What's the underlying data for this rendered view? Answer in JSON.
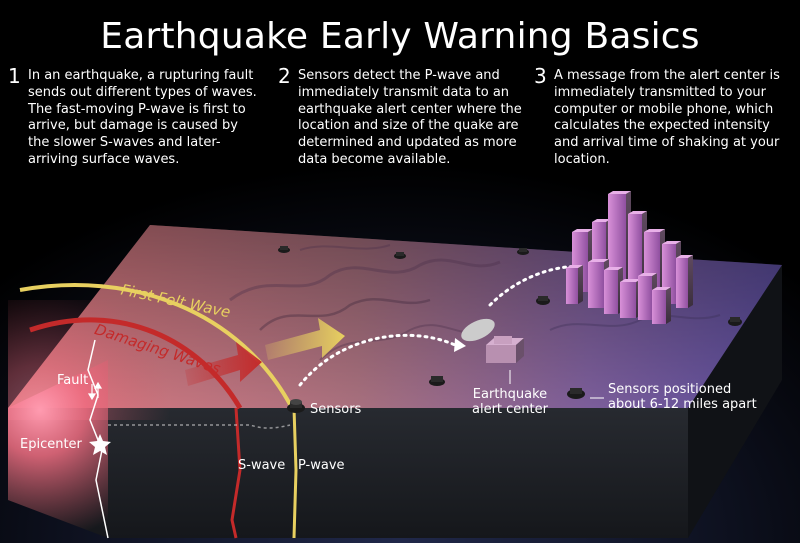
{
  "title": "Earthquake Early Warning Basics",
  "steps": [
    {
      "number": "1",
      "text": "In an earthquake, a rupturing fault sends out different types of waves.  The fast-moving P-wave is first to arrive, but damage is caused by the slower S-waves and later-arriving surface waves."
    },
    {
      "number": "2",
      "text": "Sensors detect the P-wave and immediately transmit data to an earthquake alert center where the location and size of the quake are determined and updated as more data become available."
    },
    {
      "number": "3",
      "text": "A message from the alert center is immediately transmitted to your computer or mobile phone, which calculates the expected intensity and arrival time of shaking at your location."
    }
  ],
  "labels": {
    "first_felt_wave": "First Felt Wave",
    "damaging_waves": "Damaging Waves",
    "fault": "Fault",
    "epicenter": "Epicenter",
    "sensors": "Sensors",
    "alert_center_line1": "Earthquake",
    "alert_center_line2": "alert center",
    "sensors_spacing_line1": "Sensors positioned",
    "sensors_spacing_line2": "about 6-12 miles apart",
    "s_wave": "S-wave",
    "p_wave": "P-wave"
  },
  "colors": {
    "first_felt_wave": "#e8d060",
    "damaging_waves": "#c42a2a",
    "terrain_warm": "#d46a6a",
    "terrain_cool": "#6a5aa8",
    "buildings": "#c07ac8"
  }
}
